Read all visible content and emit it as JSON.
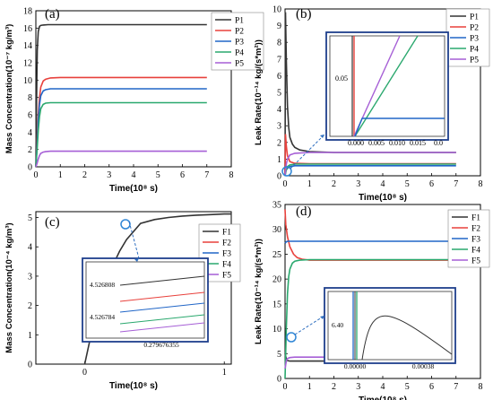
{
  "chart_data": [
    {
      "panel": "(a)",
      "type": "line",
      "xlabel": "Time(10⁸ s)",
      "ylabel": "Mass Concentration(10⁻⁷ kg/m³)",
      "xlim": [
        0,
        8
      ],
      "ylim": [
        0,
        18
      ],
      "xticks": [
        0,
        1,
        2,
        3,
        4,
        5,
        6,
        7,
        8
      ],
      "yticks": [
        0,
        2,
        4,
        6,
        8,
        10,
        12,
        14,
        16,
        18
      ],
      "legend_position": "top-right",
      "series": [
        {
          "name": "P1",
          "color": "#333333",
          "x": [
            0,
            0.02,
            0.04,
            0.06,
            0.1,
            0.15,
            0.2,
            0.3,
            0.5,
            1,
            7
          ],
          "y": [
            0,
            5,
            10,
            13.5,
            15.6,
            16.2,
            16.3,
            16.35,
            16.4,
            16.4,
            16.4
          ]
        },
        {
          "name": "P2",
          "color": "#e8413c",
          "x": [
            0,
            0.05,
            0.1,
            0.15,
            0.2,
            0.3,
            0.4,
            0.6,
            1,
            7
          ],
          "y": [
            0,
            3,
            6,
            8,
            9.2,
            9.9,
            10.1,
            10.25,
            10.3,
            10.3
          ]
        },
        {
          "name": "P3",
          "color": "#2166c7",
          "x": [
            0,
            0.05,
            0.1,
            0.15,
            0.2,
            0.3,
            0.4,
            0.6,
            1,
            7
          ],
          "y": [
            0,
            2.5,
            5.3,
            7.2,
            8.2,
            8.75,
            8.9,
            9.0,
            9.0,
            9.0
          ]
        },
        {
          "name": "P4",
          "color": "#2aa86e",
          "x": [
            0,
            0.05,
            0.1,
            0.15,
            0.2,
            0.3,
            0.4,
            0.6,
            1,
            7
          ],
          "y": [
            0,
            2,
            4.2,
            5.8,
            6.7,
            7.2,
            7.35,
            7.4,
            7.4,
            7.4
          ]
        },
        {
          "name": "P5",
          "color": "#a65fd6",
          "x": [
            0,
            0.05,
            0.1,
            0.15,
            0.2,
            0.3,
            0.4,
            0.6,
            1,
            7
          ],
          "y": [
            0,
            0.4,
            0.9,
            1.3,
            1.55,
            1.7,
            1.75,
            1.8,
            1.8,
            1.8
          ]
        }
      ]
    },
    {
      "panel": "(b)",
      "type": "line",
      "xlabel": "Time(10⁸ s)",
      "ylabel": "Leak Rate(10⁻¹⁴ kg/(s*m²))",
      "xlim": [
        0,
        8
      ],
      "ylim": [
        0,
        10
      ],
      "xticks": [
        0,
        1,
        2,
        3,
        4,
        5,
        6,
        7,
        8
      ],
      "yticks": [
        0,
        1,
        2,
        3,
        4,
        5,
        6,
        7,
        8,
        9,
        10
      ],
      "legend_position": "top-right",
      "series": [
        {
          "name": "P1",
          "color": "#333333",
          "x": [
            0,
            0.02,
            0.05,
            0.1,
            0.15,
            0.2,
            0.3,
            0.4,
            0.6,
            1,
            2,
            7
          ],
          "y": [
            0,
            9.8,
            7,
            4.2,
            2.9,
            2.3,
            1.9,
            1.7,
            1.55,
            1.45,
            1.4,
            1.4
          ]
        },
        {
          "name": "P2",
          "color": "#e8413c",
          "x": [
            0,
            0.02,
            0.05,
            0.1,
            0.2,
            0.4,
            1,
            7
          ],
          "y": [
            0,
            2.5,
            1.8,
            1.2,
            0.85,
            0.75,
            0.72,
            0.72
          ]
        },
        {
          "name": "P3",
          "color": "#2166c7",
          "x": [
            0,
            0.03,
            0.1,
            0.2,
            0.4,
            1,
            7
          ],
          "y": [
            0,
            0.3,
            0.45,
            0.55,
            0.6,
            0.6,
            0.6
          ]
        },
        {
          "name": "P4",
          "color": "#2aa86e",
          "x": [
            0,
            0.05,
            0.1,
            0.2,
            0.4,
            1,
            7
          ],
          "y": [
            0,
            0.35,
            0.55,
            0.65,
            0.7,
            0.7,
            0.7
          ]
        },
        {
          "name": "P5",
          "color": "#a65fd6",
          "x": [
            0,
            0.05,
            0.1,
            0.2,
            0.4,
            1,
            7
          ],
          "y": [
            0,
            0.7,
            1.0,
            1.25,
            1.35,
            1.4,
            1.4
          ]
        }
      ],
      "inset": {
        "xticks": [
          "0.000",
          "0.005",
          "0.010",
          "0.015",
          "0.0"
        ],
        "yticks": [
          "0.05"
        ]
      }
    },
    {
      "panel": "(c)",
      "type": "line",
      "xlabel": "Time(10⁸ s)",
      "ylabel": "Mass Concentration(10⁻⁴ kg/m³)",
      "xlim": [
        -0.35,
        1.05
      ],
      "ylim": [
        0,
        5.2
      ],
      "xticks": [
        0,
        1
      ],
      "yticks": [
        0,
        1,
        2,
        3,
        4,
        5
      ],
      "legend_position": "right",
      "series": [
        {
          "name": "F1",
          "color": "#333333",
          "x": [
            0,
            0.05,
            0.1,
            0.15,
            0.2,
            0.25,
            0.3,
            0.4,
            0.5,
            0.6,
            0.7,
            0.8,
            0.9,
            1.0,
            1.05
          ],
          "y": [
            0,
            1.1,
            2.0,
            2.75,
            3.35,
            3.85,
            4.25,
            4.8,
            4.93,
            5.0,
            5.05,
            5.08,
            5.1,
            5.12,
            5.12
          ]
        }
      ],
      "inset": {
        "xticks": [
          "0.279676355"
        ],
        "yticks": [
          "4.526808",
          "4.526784"
        ]
      },
      "extra_legend": [
        "F2",
        "F3",
        "F4",
        "F5"
      ],
      "extra_colors": [
        "#e8413c",
        "#2166c7",
        "#2aa86e",
        "#a65fd6"
      ]
    },
    {
      "panel": "(d)",
      "type": "line",
      "xlabel": "Time(10⁸ s)",
      "ylabel": "Leak Rate(10⁻¹⁴ kg/(s*m²))",
      "xlim": [
        0,
        8
      ],
      "ylim": [
        0,
        35
      ],
      "xticks": [
        0,
        1,
        2,
        3,
        4,
        5,
        6,
        7,
        8
      ],
      "yticks": [
        0,
        5,
        10,
        15,
        20,
        25,
        30,
        35
      ],
      "legend_position": "top-right",
      "series": [
        {
          "name": "F1",
          "color": "#333333",
          "x": [
            0,
            0.05,
            0.1,
            0.2,
            0.4,
            1,
            7
          ],
          "y": [
            5,
            4,
            3.6,
            3.5,
            3.5,
            3.5,
            3.5
          ]
        },
        {
          "name": "F2",
          "color": "#e8413c",
          "x": [
            0,
            0.03,
            0.1,
            0.2,
            0.35,
            0.5,
            0.7,
            1,
            7
          ],
          "y": [
            34,
            31,
            28.5,
            26.5,
            25,
            24.3,
            24,
            23.8,
            23.8
          ]
        },
        {
          "name": "F3",
          "color": "#2166c7",
          "x": [
            0,
            0.05,
            0.1,
            0.2,
            7
          ],
          "y": [
            27.2,
            27.5,
            27.6,
            27.6,
            27.6
          ]
        },
        {
          "name": "F4",
          "color": "#2aa86e",
          "x": [
            0,
            0.05,
            0.1,
            0.15,
            0.2,
            0.3,
            0.4,
            0.6,
            1,
            7
          ],
          "y": [
            0,
            10,
            17,
            20.5,
            22,
            23.2,
            23.6,
            23.8,
            23.9,
            23.9
          ]
        },
        {
          "name": "F5",
          "color": "#a65fd6",
          "x": [
            0,
            0.05,
            0.1,
            0.2,
            0.4,
            1,
            7
          ],
          "y": [
            2,
            3.5,
            4,
            4.2,
            4.3,
            4.3,
            4.3
          ]
        }
      ],
      "inset": {
        "xticks": [
          "0.00000",
          "0.00038"
        ],
        "yticks": [
          "6.40"
        ]
      }
    }
  ]
}
